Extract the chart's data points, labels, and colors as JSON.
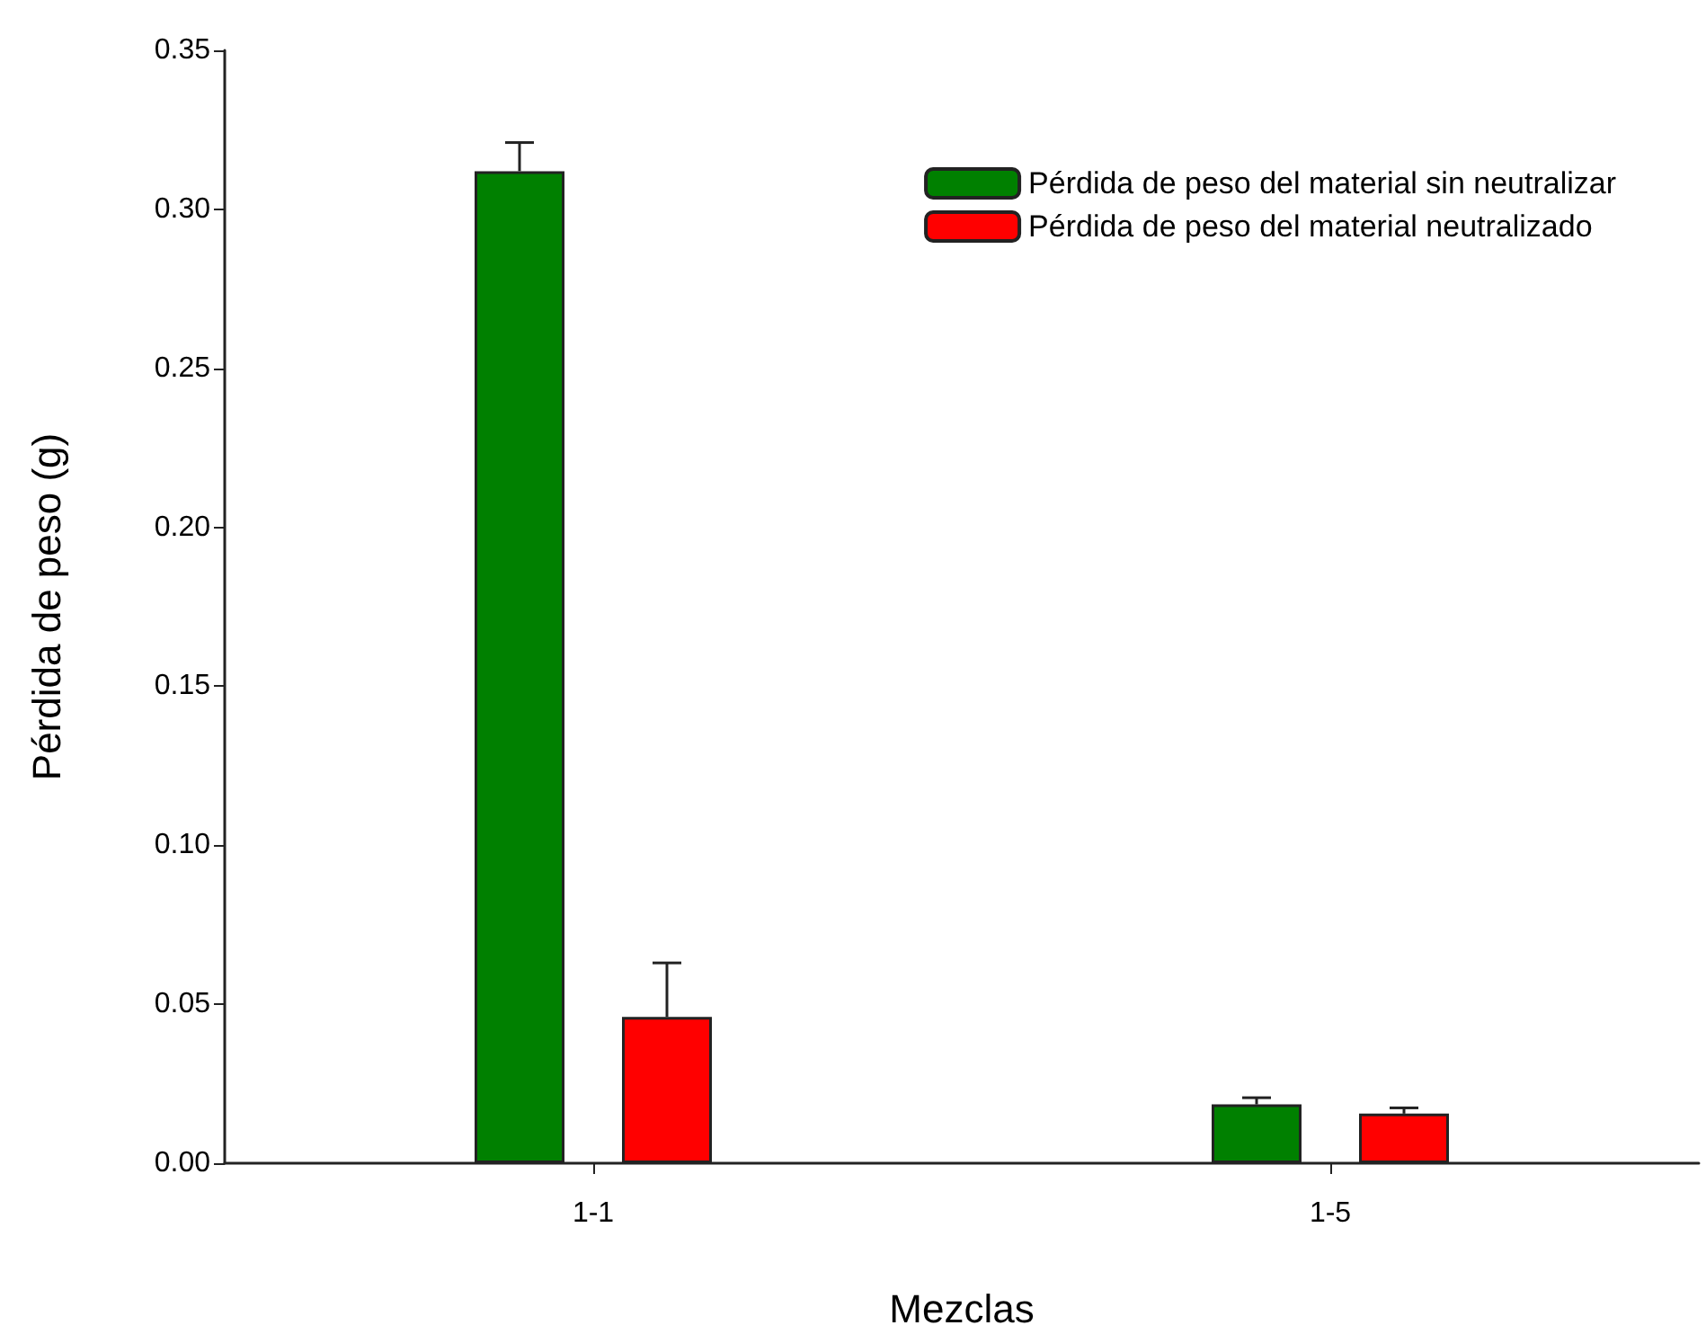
{
  "chart_data": {
    "type": "bar",
    "xlabel": "Mezclas",
    "ylabel": "Pérdida de peso (g)",
    "categories": [
      "1-1",
      "1-5"
    ],
    "series": [
      {
        "name": "Pérdida de peso del material sin neutralizar",
        "color": "#008000",
        "values": [
          0.312,
          0.0185
        ],
        "errors": [
          [
            0.312,
            0.321
          ],
          [
            0.0185,
            0.0206
          ]
        ]
      },
      {
        "name": "Pérdida de peso del material neutralizado",
        "color": "#ff0000",
        "values": [
          0.046,
          0.0156
        ],
        "errors": [
          [
            0.046,
            0.063
          ],
          [
            0.0156,
            0.0174
          ]
        ]
      }
    ],
    "ylim": [
      0,
      0.35
    ],
    "yticks": [
      {
        "value": 0,
        "label": "0.00"
      },
      {
        "value": 0.05,
        "label": "0.05"
      },
      {
        "value": 0.1,
        "label": "0.10"
      },
      {
        "value": 0.15,
        "label": "0.15"
      },
      {
        "value": 0.2,
        "label": "0.20"
      },
      {
        "value": 0.25,
        "label": "0.25"
      },
      {
        "value": 0.3,
        "label": "0.30"
      },
      {
        "value": 0.35,
        "label": "0.35"
      }
    ],
    "grid": false,
    "legend": "top right"
  }
}
